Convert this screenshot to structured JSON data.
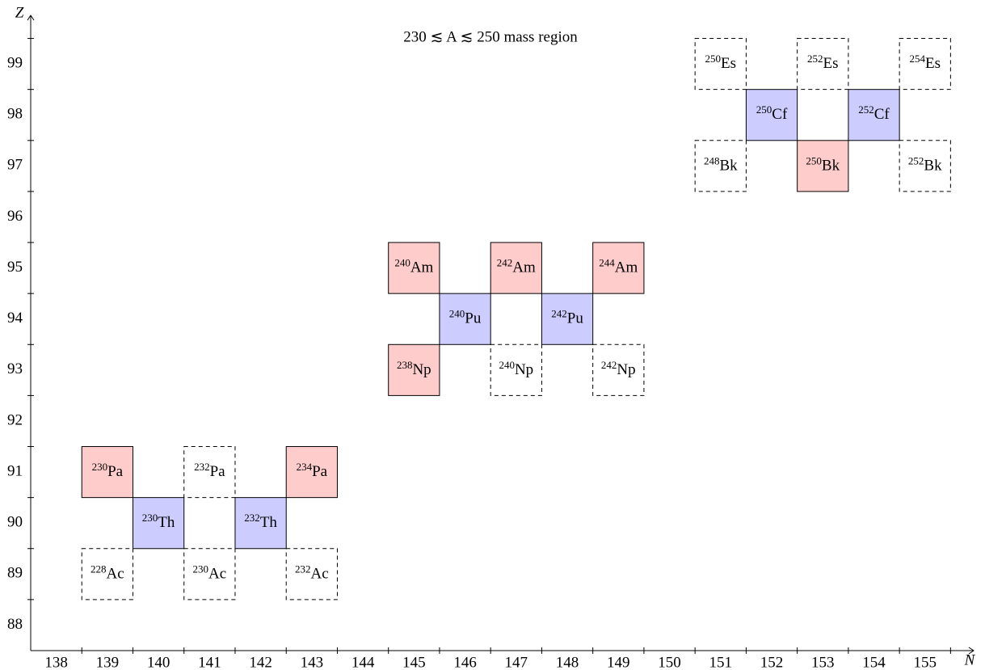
{
  "chart_data": {
    "type": "nuclide-grid",
    "title": "230 ≲ A ≲ 250 mass region",
    "x_label": "N",
    "y_label": "Z",
    "xlim": [
      137.5,
      156
    ],
    "ylim": [
      87.5,
      100
    ],
    "xticks": [
      138,
      139,
      140,
      141,
      142,
      143,
      144,
      145,
      146,
      147,
      148,
      149,
      150,
      151,
      152,
      153,
      154,
      155
    ],
    "yticks": [
      88,
      89,
      90,
      91,
      92,
      93,
      94,
      95,
      96,
      97,
      98,
      99
    ],
    "styles": {
      "odd": {
        "fill": "#ffcccc",
        "dash": false
      },
      "even": {
        "fill": "#ccccff",
        "dash": false
      },
      "other": {
        "fill": "none",
        "dash": true
      }
    },
    "cells": [
      {
        "mass": 230,
        "symbol": "Pa",
        "n": 139,
        "z": 91,
        "style": "odd"
      },
      {
        "mass": 230,
        "symbol": "Th",
        "n": 140,
        "z": 90,
        "style": "even"
      },
      {
        "mass": 232,
        "symbol": "Pa",
        "n": 141,
        "z": 91,
        "style": "other"
      },
      {
        "mass": 232,
        "symbol": "Th",
        "n": 142,
        "z": 90,
        "style": "even"
      },
      {
        "mass": 234,
        "symbol": "Pa",
        "n": 143,
        "z": 91,
        "style": "odd"
      },
      {
        "mass": 228,
        "symbol": "Ac",
        "n": 139,
        "z": 89,
        "style": "other"
      },
      {
        "mass": 230,
        "symbol": "Ac",
        "n": 141,
        "z": 89,
        "style": "other"
      },
      {
        "mass": 232,
        "symbol": "Ac",
        "n": 143,
        "z": 89,
        "style": "other"
      },
      {
        "mass": 240,
        "symbol": "Am",
        "n": 145,
        "z": 95,
        "style": "odd"
      },
      {
        "mass": 240,
        "symbol": "Pu",
        "n": 146,
        "z": 94,
        "style": "even"
      },
      {
        "mass": 242,
        "symbol": "Am",
        "n": 147,
        "z": 95,
        "style": "odd"
      },
      {
        "mass": 242,
        "symbol": "Pu",
        "n": 148,
        "z": 94,
        "style": "even"
      },
      {
        "mass": 244,
        "symbol": "Am",
        "n": 149,
        "z": 95,
        "style": "odd"
      },
      {
        "mass": 238,
        "symbol": "Np",
        "n": 145,
        "z": 93,
        "style": "odd"
      },
      {
        "mass": 240,
        "symbol": "Np",
        "n": 147,
        "z": 93,
        "style": "other"
      },
      {
        "mass": 242,
        "symbol": "Np",
        "n": 149,
        "z": 93,
        "style": "other"
      },
      {
        "mass": 250,
        "symbol": "Es",
        "n": 151,
        "z": 99,
        "style": "other"
      },
      {
        "mass": 250,
        "symbol": "Cf",
        "n": 152,
        "z": 98,
        "style": "even"
      },
      {
        "mass": 252,
        "symbol": "Es",
        "n": 153,
        "z": 99,
        "style": "other"
      },
      {
        "mass": 252,
        "symbol": "Cf",
        "n": 154,
        "z": 98,
        "style": "even"
      },
      {
        "mass": 254,
        "symbol": "Es",
        "n": 155,
        "z": 99,
        "style": "other"
      },
      {
        "mass": 248,
        "symbol": "Bk",
        "n": 151,
        "z": 97,
        "style": "other"
      },
      {
        "mass": 250,
        "symbol": "Bk",
        "n": 153,
        "z": 97,
        "style": "odd"
      },
      {
        "mass": 252,
        "symbol": "Bk",
        "n": 155,
        "z": 97,
        "style": "other"
      }
    ]
  }
}
